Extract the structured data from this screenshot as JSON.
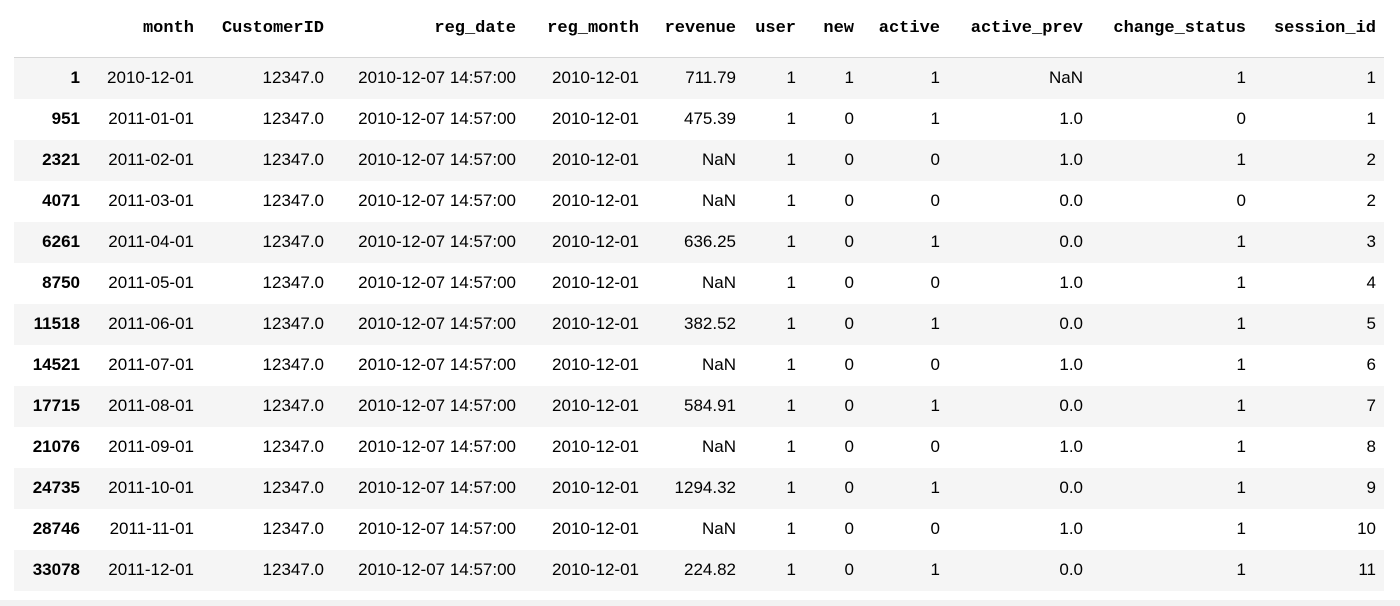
{
  "table": {
    "columns": [
      "",
      "month",
      "CustomerID",
      "reg_date",
      "reg_month",
      "revenue",
      "user",
      "new",
      "active",
      "active_prev",
      "change_status",
      "session_id"
    ],
    "rows": [
      {
        "index": "1",
        "cells": [
          "2010-12-01",
          "12347.0",
          "2010-12-07 14:57:00",
          "2010-12-01",
          "711.79",
          "1",
          "1",
          "1",
          "NaN",
          "1",
          "1"
        ]
      },
      {
        "index": "951",
        "cells": [
          "2011-01-01",
          "12347.0",
          "2010-12-07 14:57:00",
          "2010-12-01",
          "475.39",
          "1",
          "0",
          "1",
          "1.0",
          "0",
          "1"
        ]
      },
      {
        "index": "2321",
        "cells": [
          "2011-02-01",
          "12347.0",
          "2010-12-07 14:57:00",
          "2010-12-01",
          "NaN",
          "1",
          "0",
          "0",
          "1.0",
          "1",
          "2"
        ]
      },
      {
        "index": "4071",
        "cells": [
          "2011-03-01",
          "12347.0",
          "2010-12-07 14:57:00",
          "2010-12-01",
          "NaN",
          "1",
          "0",
          "0",
          "0.0",
          "0",
          "2"
        ]
      },
      {
        "index": "6261",
        "cells": [
          "2011-04-01",
          "12347.0",
          "2010-12-07 14:57:00",
          "2010-12-01",
          "636.25",
          "1",
          "0",
          "1",
          "0.0",
          "1",
          "3"
        ]
      },
      {
        "index": "8750",
        "cells": [
          "2011-05-01",
          "12347.0",
          "2010-12-07 14:57:00",
          "2010-12-01",
          "NaN",
          "1",
          "0",
          "0",
          "1.0",
          "1",
          "4"
        ]
      },
      {
        "index": "11518",
        "cells": [
          "2011-06-01",
          "12347.0",
          "2010-12-07 14:57:00",
          "2010-12-01",
          "382.52",
          "1",
          "0",
          "1",
          "0.0",
          "1",
          "5"
        ]
      },
      {
        "index": "14521",
        "cells": [
          "2011-07-01",
          "12347.0",
          "2010-12-07 14:57:00",
          "2010-12-01",
          "NaN",
          "1",
          "0",
          "0",
          "1.0",
          "1",
          "6"
        ]
      },
      {
        "index": "17715",
        "cells": [
          "2011-08-01",
          "12347.0",
          "2010-12-07 14:57:00",
          "2010-12-01",
          "584.91",
          "1",
          "0",
          "1",
          "0.0",
          "1",
          "7"
        ]
      },
      {
        "index": "21076",
        "cells": [
          "2011-09-01",
          "12347.0",
          "2010-12-07 14:57:00",
          "2010-12-01",
          "NaN",
          "1",
          "0",
          "0",
          "1.0",
          "1",
          "8"
        ]
      },
      {
        "index": "24735",
        "cells": [
          "2011-10-01",
          "12347.0",
          "2010-12-07 14:57:00",
          "2010-12-01",
          "1294.32",
          "1",
          "0",
          "1",
          "0.0",
          "1",
          "9"
        ]
      },
      {
        "index": "28746",
        "cells": [
          "2011-11-01",
          "12347.0",
          "2010-12-07 14:57:00",
          "2010-12-01",
          "NaN",
          "1",
          "0",
          "0",
          "1.0",
          "1",
          "10"
        ]
      },
      {
        "index": "33078",
        "cells": [
          "2011-12-01",
          "12347.0",
          "2010-12-07 14:57:00",
          "2010-12-01",
          "224.82",
          "1",
          "0",
          "1",
          "0.0",
          "1",
          "11"
        ]
      }
    ]
  }
}
